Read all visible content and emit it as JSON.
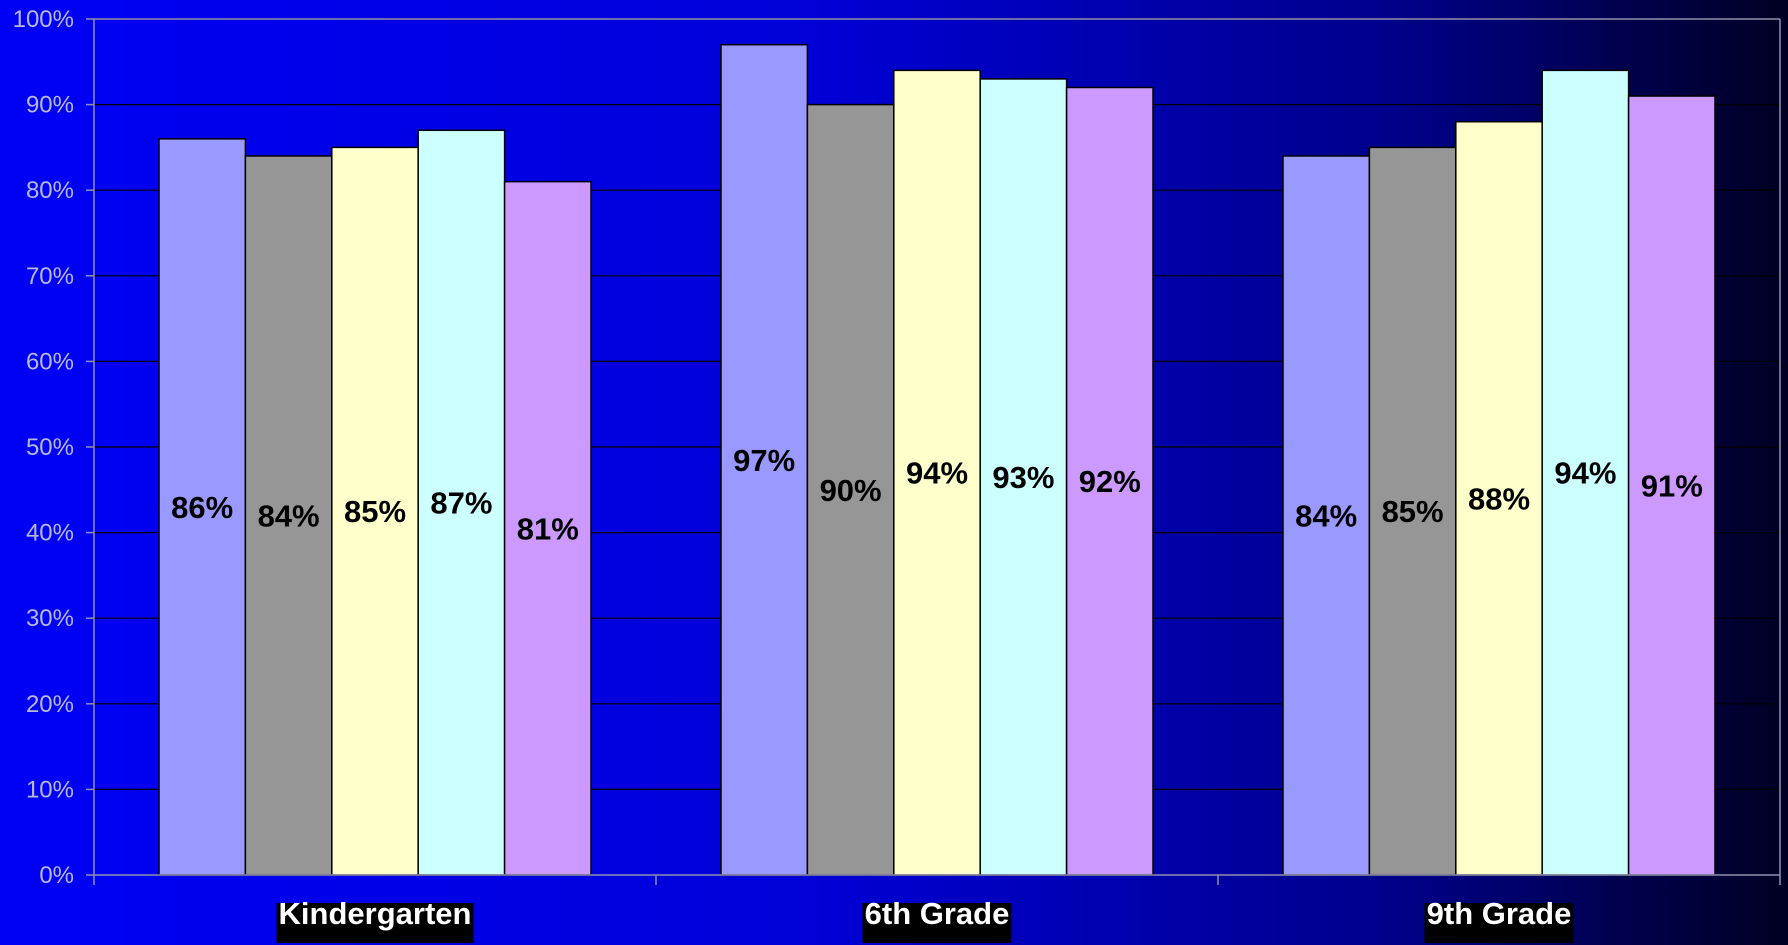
{
  "chart_data": {
    "type": "bar",
    "categories": [
      "Kindergarten",
      "6th Grade",
      "9th Grade"
    ],
    "series": [
      {
        "values": [
          86,
          97,
          84
        ],
        "color": "#9999ff"
      },
      {
        "values": [
          84,
          90,
          85
        ],
        "color": "#969696"
      },
      {
        "values": [
          85,
          94,
          88
        ],
        "color": "#ffffcc"
      },
      {
        "values": [
          87,
          93,
          94
        ],
        "color": "#ccffff"
      },
      {
        "values": [
          81,
          92,
          91
        ],
        "color": "#cc99ff"
      }
    ],
    "data_labels": [
      [
        "86%",
        "84%",
        "85%",
        "87%",
        "81%"
      ],
      [
        "97%",
        "90%",
        "94%",
        "93%",
        "92%"
      ],
      [
        "84%",
        "85%",
        "88%",
        "94%",
        "91%"
      ]
    ],
    "y_ticks": [
      "0%",
      "10%",
      "20%",
      "30%",
      "40%",
      "50%",
      "60%",
      "70%",
      "80%",
      "90%",
      "100%"
    ],
    "ylim": [
      0,
      100
    ],
    "title": "",
    "xlabel": "",
    "ylabel": "",
    "grid": true,
    "legend": "none",
    "colors": {
      "gridline": "#000000",
      "axis": "#9090b0",
      "label_bg": "#000000",
      "label_text": "#ffffff",
      "value_text": "#000000"
    }
  }
}
